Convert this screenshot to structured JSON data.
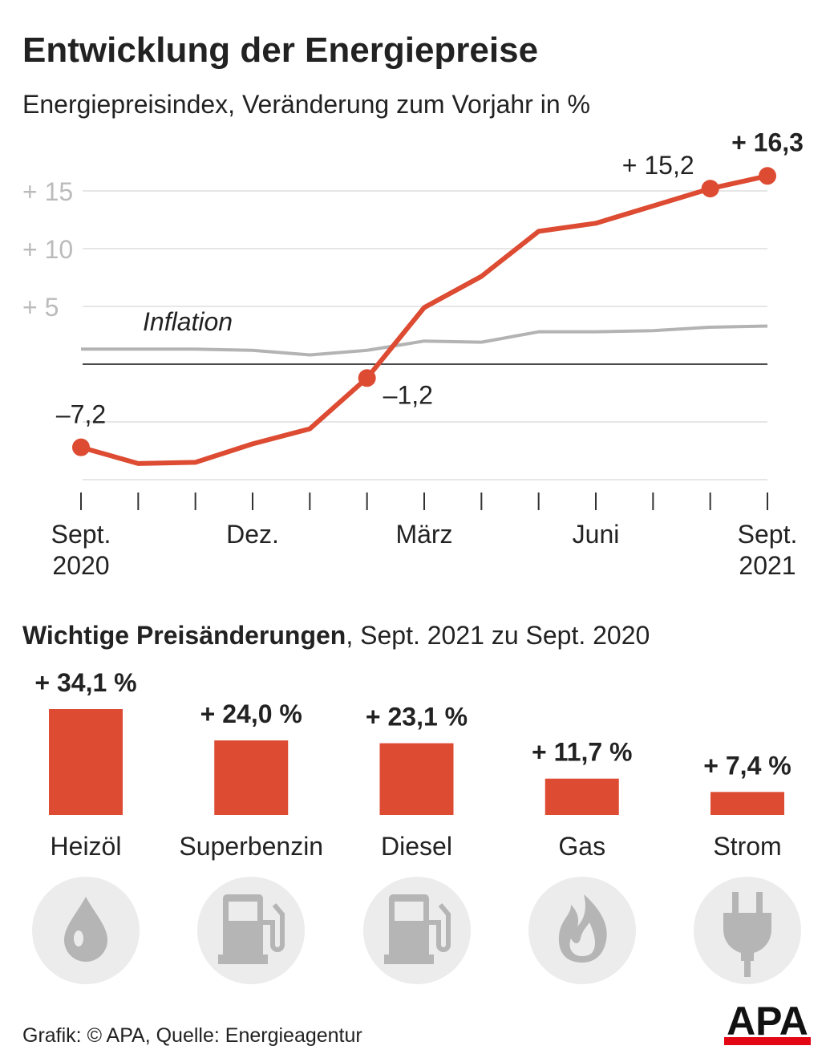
{
  "chart_data": [
    {
      "type": "line",
      "title": "Entwicklung der Energiepreise",
      "subtitle": "Energiepreisindex, Veränderung zum Vorjahr in %",
      "categories": [
        "Sept. 2020",
        null,
        null,
        "Dez.",
        null,
        null,
        "März",
        null,
        null,
        "Juni",
        null,
        null,
        "Sept. 2021"
      ],
      "series": [
        {
          "name": "Inflation",
          "color": "#b3b3b3",
          "values": [
            1.3,
            1.3,
            1.3,
            1.2,
            0.8,
            1.2,
            2.0,
            1.9,
            2.8,
            2.8,
            2.9,
            3.2,
            3.3
          ]
        },
        {
          "color": "#dc4b32",
          "values": [
            -7.2,
            -8.6,
            -8.5,
            -6.9,
            -5.6,
            -1.2,
            4.9,
            7.6,
            11.5,
            12.2,
            13.7,
            15.2,
            16.3
          ],
          "value_labels": [
            "–7,2",
            null,
            null,
            null,
            null,
            "–1,2",
            null,
            null,
            null,
            null,
            null,
            "+ 15,2",
            "+ 16,3"
          ]
        }
      ],
      "ylim": [
        -10,
        20
      ],
      "yticks": [
        {
          "value": -10,
          "label": null
        },
        {
          "value": -5,
          "label": null
        },
        {
          "value": 0,
          "label": null
        },
        {
          "value": 5,
          "label": "+ 5"
        },
        {
          "value": 10,
          "label": "+ 10"
        },
        {
          "value": 15,
          "label": "+ 15"
        }
      ],
      "grid": true
    },
    {
      "type": "bar",
      "title": "Wichtige Preisänderungen",
      "subtitle": ", Sept. 2021 zu Sept. 2020",
      "categories": [
        "Heizöl",
        "Superbenzin",
        "Diesel",
        "Gas",
        "Strom"
      ],
      "values": [
        34.1,
        24.0,
        23.1,
        11.7,
        7.4
      ],
      "value_labels": [
        "+ 34,1 %",
        "+ 24,0 %",
        "+ 23,1 %",
        "+ 11,7 %",
        "+ 7,4 %"
      ],
      "color": "#dc4b32"
    }
  ],
  "footer": {
    "source": "Grafik: © APA, Quelle: Energieagentur",
    "logo": "APA"
  }
}
